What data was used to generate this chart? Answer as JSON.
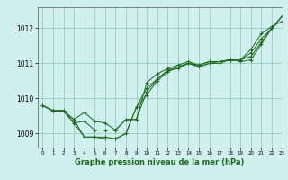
{
  "title": "Graphe pression niveau de la mer (hPa)",
  "bg_color": "#cff0ee",
  "grid_color": "#99ccbb",
  "line_color": "#1a6b1a",
  "marker_color": "#1a6b1a",
  "xlim": [
    -0.5,
    23
  ],
  "ylim": [
    1008.6,
    1012.6
  ],
  "yticks": [
    1009,
    1010,
    1011,
    1012
  ],
  "xticks": [
    0,
    1,
    2,
    3,
    4,
    5,
    6,
    7,
    8,
    9,
    10,
    11,
    12,
    13,
    14,
    15,
    16,
    17,
    18,
    19,
    20,
    21,
    22,
    23
  ],
  "series": [
    [
      1009.8,
      1009.65,
      1009.65,
      1009.4,
      1008.9,
      1008.9,
      1008.9,
      1008.85,
      1009.0,
      1009.75,
      1010.1,
      1010.5,
      1010.75,
      1010.9,
      1011.0,
      1010.9,
      1011.0,
      1011.0,
      1011.1,
      1011.05,
      1011.1,
      1011.55,
      1012.0,
      1012.35
    ],
    [
      1009.8,
      1009.65,
      1009.65,
      1009.3,
      1009.35,
      1009.1,
      1009.1,
      1009.1,
      1009.4,
      1009.4,
      1010.45,
      1010.7,
      1010.85,
      1010.95,
      1011.05,
      1010.95,
      1011.05,
      1011.05,
      1011.1,
      1011.1,
      1011.4,
      1011.85,
      1012.05,
      1012.2
    ],
    [
      1009.8,
      1009.65,
      1009.65,
      1009.3,
      1008.9,
      1008.9,
      1008.85,
      1008.85,
      1009.0,
      1009.75,
      1010.3,
      1010.55,
      1010.8,
      1010.9,
      1011.0,
      1010.95,
      1011.05,
      1011.05,
      1011.1,
      1011.1,
      1011.2,
      1011.6,
      1012.0,
      1012.35
    ],
    [
      1009.8,
      1009.65,
      1009.65,
      1009.4,
      1009.6,
      1009.35,
      1009.3,
      1009.1,
      1009.4,
      1009.4,
      1010.2,
      1010.55,
      1010.8,
      1010.85,
      1011.0,
      1010.9,
      1011.0,
      1011.05,
      1011.1,
      1011.1,
      1011.3,
      1011.7,
      1012.0,
      1012.35
    ]
  ]
}
